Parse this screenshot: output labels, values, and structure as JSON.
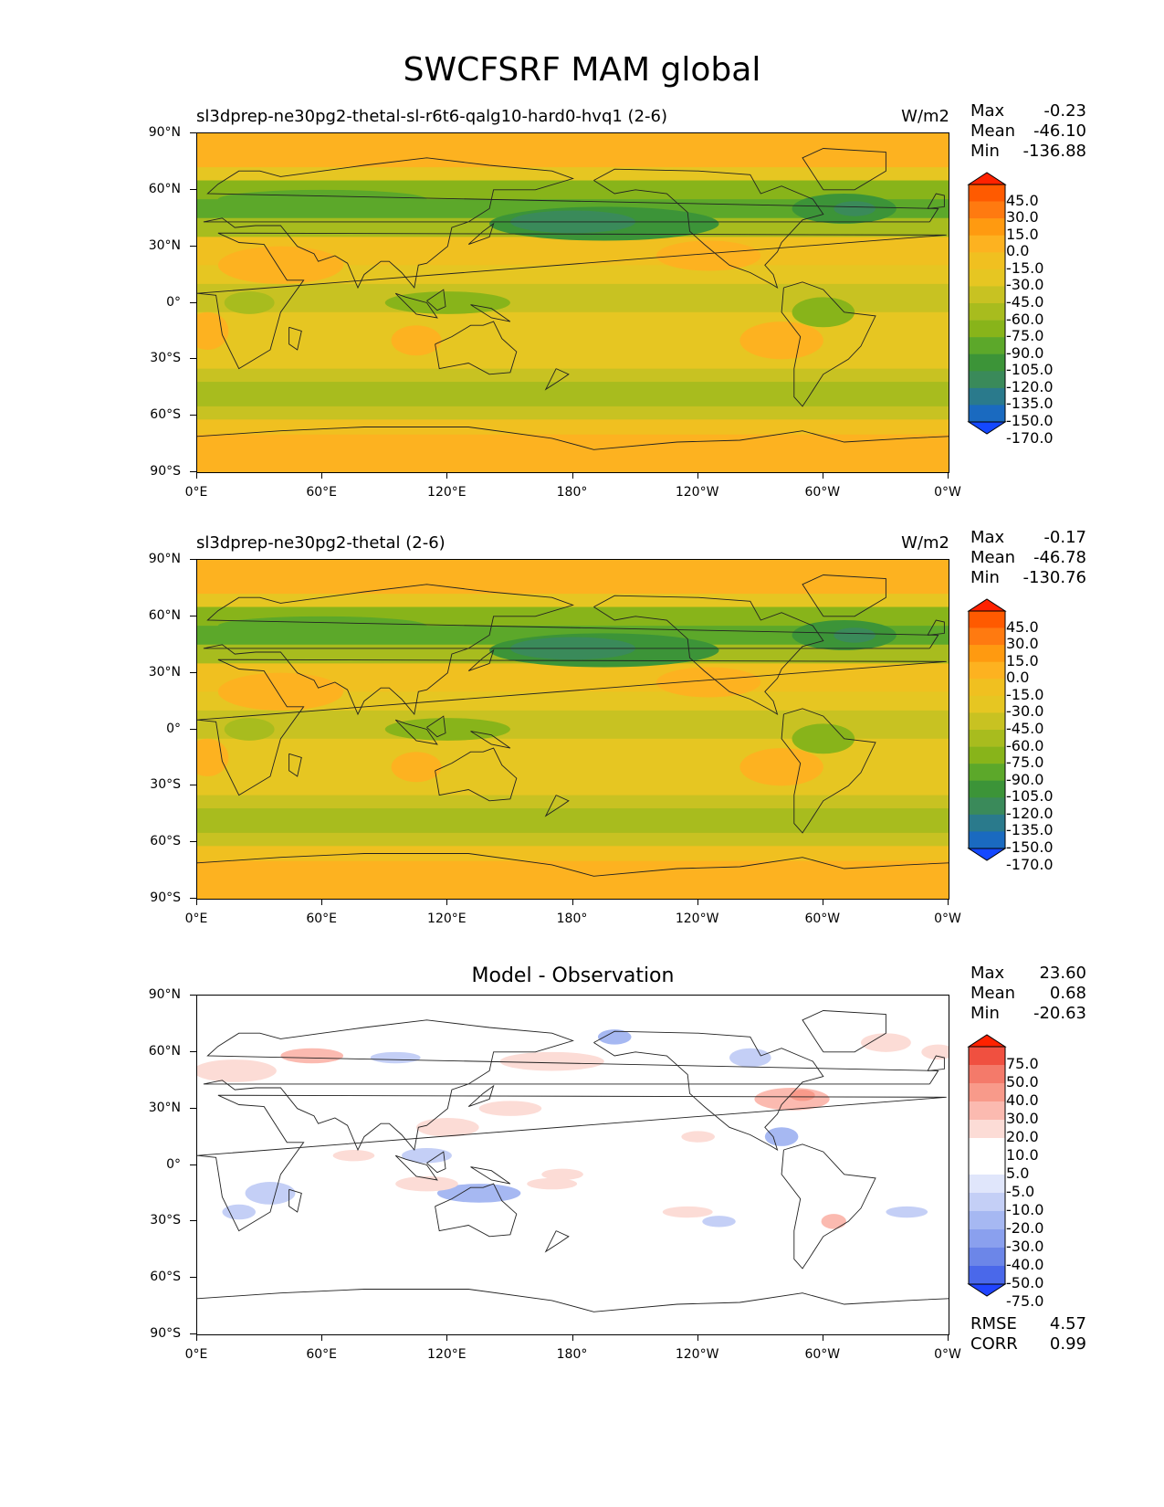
{
  "figure_title": "SWCFSRF MAM global",
  "x_ticks": [
    "0°E",
    "60°E",
    "120°E",
    "180°",
    "120°W",
    "60°W",
    "0°W"
  ],
  "y_ticks": [
    "90°N",
    "60°N",
    "30°N",
    "0°",
    "30°S",
    "60°S",
    "90°S"
  ],
  "panels": [
    {
      "title": "sl3dprep-ne30pg2-thetal-sl-r6t6-qalg10-hard0-hvq1 (2-6)",
      "units": "W/m2",
      "stats": {
        "max_label": "Max",
        "max": "-0.23",
        "mean_label": "Mean",
        "mean": "-46.10",
        "min_label": "Min",
        "min": "-136.88"
      },
      "colorbar_labels": [
        "45.0",
        "30.0",
        "15.0",
        "0.0",
        "-15.0",
        "-30.0",
        "-45.0",
        "-60.0",
        "-75.0",
        "-90.0",
        "-105.0",
        "-120.0",
        "-135.0",
        "-150.0",
        "-170.0"
      ]
    },
    {
      "title": "sl3dprep-ne30pg2-thetal (2-6)",
      "units": "W/m2",
      "stats": {
        "max_label": "Max",
        "max": "-0.17",
        "mean_label": "Mean",
        "mean": "-46.78",
        "min_label": "Min",
        "min": "-130.76"
      },
      "colorbar_labels": [
        "45.0",
        "30.0",
        "15.0",
        "0.0",
        "-15.0",
        "-30.0",
        "-45.0",
        "-60.0",
        "-75.0",
        "-90.0",
        "-105.0",
        "-120.0",
        "-135.0",
        "-150.0",
        "-170.0"
      ]
    },
    {
      "title": "Model - Observation",
      "units": "",
      "stats": {
        "max_label": "Max",
        "max": "23.60",
        "mean_label": "Mean",
        "mean": "0.68",
        "min_label": "Min",
        "min": "-20.63"
      },
      "colorbar_labels": [
        "75.0",
        "50.0",
        "40.0",
        "30.0",
        "20.0",
        "10.0",
        "5.0",
        "-5.0",
        "-10.0",
        "-20.0",
        "-30.0",
        "-40.0",
        "-50.0",
        "-75.0"
      ],
      "footer": {
        "rmse_label": "RMSE",
        "rmse": "4.57",
        "corr_label": "CORR",
        "corr": "0.99"
      }
    }
  ],
  "colors": {
    "field_palette": [
      "#ff2200",
      "#ff5a00",
      "#ff7a10",
      "#ff9a10",
      "#fdb220",
      "#f0c020",
      "#e6c622",
      "#c8c222",
      "#a8bc1e",
      "#88b41a",
      "#5ca82a",
      "#3c9438",
      "#3a8a5a",
      "#2a7a8c",
      "#1a6ac0",
      "#1448ff"
    ],
    "diff_palette": [
      "#ff2200",
      "#f05040",
      "#f47a6a",
      "#f89a8a",
      "#fbbab0",
      "#fcdcd6",
      "#ffffff",
      "#ffffff",
      "#e0e6fb",
      "#c4cff6",
      "#a6b8f2",
      "#8aa0ee",
      "#6c86e8",
      "#4a68ea",
      "#2044ff"
    ]
  }
}
